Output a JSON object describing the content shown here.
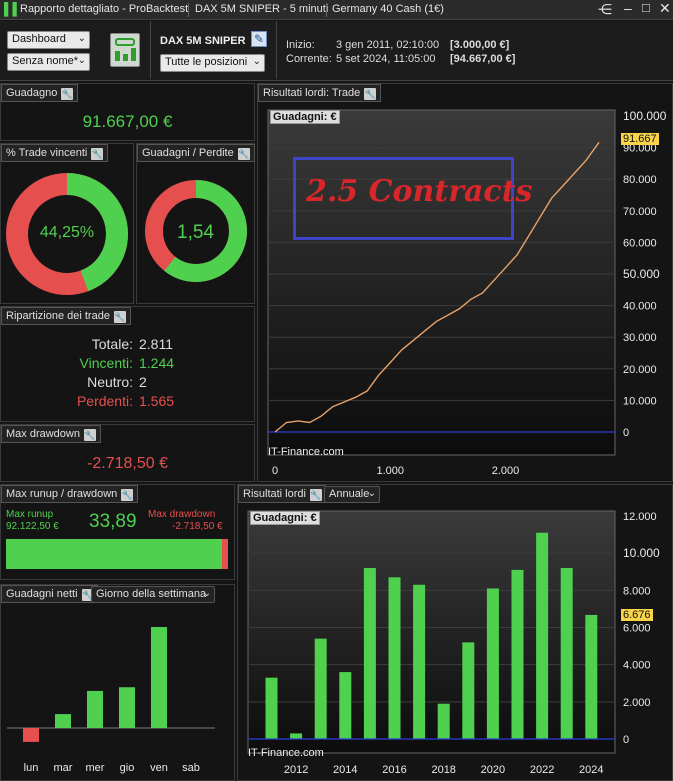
{
  "window": {
    "title": "Rapporto dettagliato - ProBacktest",
    "strategy": "DAX 5M  SNIPER - 5 minuti",
    "instrument": "Germany 40 Cash (1€)"
  },
  "toolbar": {
    "view_select": "Dashboard",
    "name_select": "Senza nome*",
    "strategy_name": "DAX 5M  SNIPER",
    "positions_select": "Tutte le posizioni",
    "start_label": "Inizio:",
    "start_date": "3 gen 2011, 02:10:00",
    "start_value": "[3.000,00 €]",
    "current_label": "Corrente:",
    "current_date": "5 set 2024, 11:05:00",
    "current_value": "[94.667,00 €]"
  },
  "gain": {
    "title": "Guadagno",
    "value": "91.667,00 €"
  },
  "winning_trades": {
    "title": "% Trade vincenti",
    "value": "44,25%",
    "fraction": 0.4425
  },
  "gain_loss": {
    "title": "Guadagni / Perdite",
    "value": "1,54",
    "fraction": 0.606
  },
  "breakdown": {
    "title": "Ripartizione dei trade",
    "total_label": "Totale:",
    "total": "2.811",
    "win_label": "Vincenti:",
    "win": "1.244",
    "neutral_label": "Neutro:",
    "neutral": "2",
    "loss_label": "Perdenti:",
    "loss": "1.565"
  },
  "max_drawdown": {
    "title": "Max drawdown",
    "value": "-2.718,50 €"
  },
  "runup": {
    "title": "Max runup / drawdown",
    "runup_label": "Max runup",
    "runup_value": "92.122,50 €",
    "ratio": "33,89",
    "dd_label": "Max drawdown",
    "dd_value": "-2.718,50 €",
    "runup_fraction": 0.971
  },
  "equity_chart": {
    "title": "Risultati lordi: Trade",
    "inner_title": "Guadagni: €",
    "annotation": "2.5 Contracts",
    "watermark": "IT-Finance.com",
    "last_value_tag": "91.667",
    "y_ticks": [
      "100.000",
      "90.000",
      "80.000",
      "70.000",
      "60.000",
      "50.000",
      "40.000",
      "30.000",
      "20.000",
      "10.000",
      "0"
    ],
    "x_ticks": [
      "0",
      "1.000",
      "2.000"
    ]
  },
  "annual_chart": {
    "title": "Risultati lordi",
    "period_select": "Annuale",
    "inner_title": "Guadagni: €",
    "watermark": "IT-Finance.com",
    "last_value_tag": "6.676",
    "y_ticks": [
      "12.000",
      "10.000",
      "8.000",
      "6.000",
      "4.000",
      "2.000",
      "0"
    ],
    "x_ticks": [
      "2012",
      "2014",
      "2016",
      "2018",
      "2020",
      "2022",
      "2024"
    ]
  },
  "weekday": {
    "title": "Guadagni netti",
    "select": "Giorno della settimana",
    "days": [
      "lun",
      "mar",
      "mer",
      "gio",
      "ven",
      "sab"
    ]
  },
  "colors": {
    "bar_green": "#4fd04f",
    "bar_red": "#e5504f",
    "equity_line": "#e8a267",
    "annotation_red": "#d8262a",
    "annotation_box": "#3e44c8",
    "tag_yellow": "#f7d44a"
  },
  "chart_data": [
    {
      "type": "line",
      "title": "Risultati lordi: Trade",
      "ylabel": "Guadagni: €",
      "xlim": [
        0,
        2811
      ],
      "ylim": [
        0,
        100000
      ],
      "x": [
        0,
        100,
        200,
        300,
        400,
        500,
        600,
        700,
        800,
        900,
        1000,
        1100,
        1200,
        1300,
        1400,
        1500,
        1600,
        1700,
        1800,
        1900,
        2000,
        2100,
        2200,
        2300,
        2400,
        2500,
        2600,
        2700,
        2811
      ],
      "series": [
        {
          "values": [
            0,
            3000,
            3500,
            3000,
            5000,
            8000,
            9500,
            11000,
            13000,
            18000,
            22000,
            26000,
            29000,
            32000,
            35000,
            37000,
            39000,
            42000,
            44000,
            48000,
            52000,
            56000,
            62000,
            68000,
            74000,
            78000,
            82000,
            86000,
            91667
          ]
        }
      ]
    },
    {
      "type": "bar",
      "title": "Risultati lordi",
      "ylabel": "Guadagni: €",
      "ylim": [
        0,
        12500
      ],
      "categories": [
        "2011",
        "2012",
        "2013",
        "2014",
        "2015",
        "2016",
        "2017",
        "2018",
        "2019",
        "2020",
        "2021",
        "2022",
        "2023",
        "2024"
      ],
      "values": [
        3300,
        300,
        5400,
        3600,
        9200,
        8700,
        8300,
        1900,
        5200,
        8100,
        9100,
        11100,
        9200,
        6676
      ]
    },
    {
      "type": "bar",
      "title": "Guadagni netti",
      "categories": [
        "lun",
        "mar",
        "mer",
        "gio",
        "ven",
        "sab"
      ],
      "values": [
        -1500,
        1500,
        4000,
        4400,
        10900,
        0
      ]
    }
  ]
}
